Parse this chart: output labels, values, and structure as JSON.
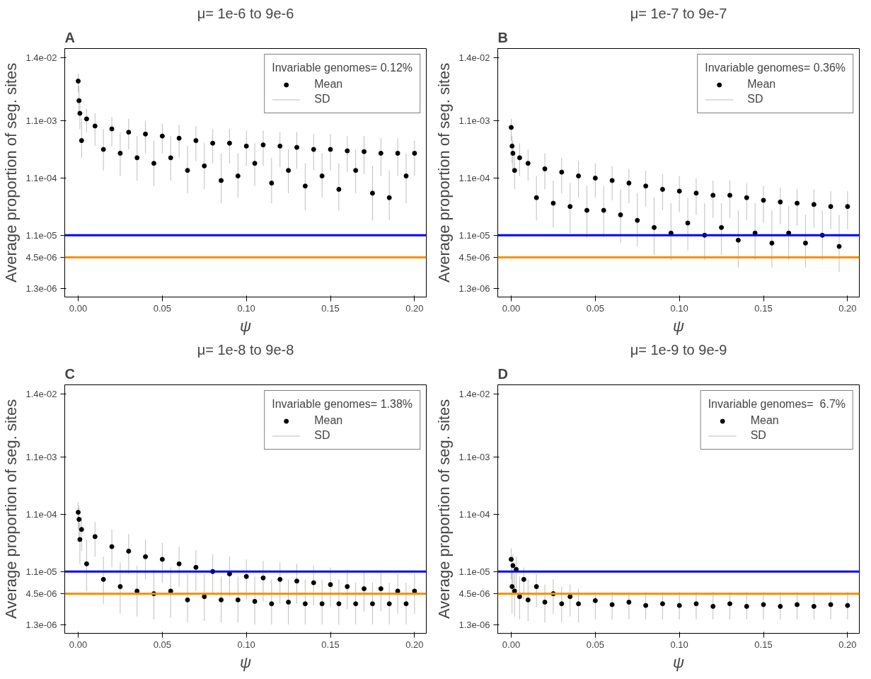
{
  "chart_data": [
    {
      "type": "scatter",
      "title": "μ= 1e-6 to 9e-6",
      "annotations": [
        "A"
      ],
      "xlabel": "ψ",
      "ylabel": "Average proportion of seg. sites",
      "legend_title": "Invariable genomes= 0.12%",
      "legend": "top right",
      "log": "y",
      "x": [
        0,
        0.0005,
        0.001,
        0.002,
        0.005,
        0.01,
        0.015,
        0.02,
        0.025,
        0.03,
        0.035,
        0.04,
        0.045,
        0.05,
        0.055,
        0.06,
        0.065,
        0.07,
        0.075,
        0.08,
        0.085,
        0.09,
        0.095,
        0.1,
        0.105,
        0.11,
        0.115,
        0.12,
        0.125,
        0.13,
        0.135,
        0.14,
        0.145,
        0.15,
        0.155,
        0.16,
        0.165,
        0.17,
        0.175,
        0.18,
        0.185,
        0.19,
        0.195,
        0.2
      ],
      "series": [
        {
          "name": "Mean",
          "marker": "circle",
          "color": "#000000",
          "values": [
            0.0055,
            0.0025,
            0.0015,
            0.0005,
            0.0012,
            0.0009,
            0.00035,
            0.0008,
            0.0003,
            0.0007,
            0.00025,
            0.00065,
            0.0002,
            0.0006,
            0.00025,
            0.00055,
            0.00015,
            0.0005,
            0.00018,
            0.00045,
            0.0001,
            0.00045,
            0.00012,
            0.0004,
            0.0002,
            0.00042,
            9e-05,
            0.0004,
            0.00015,
            0.00038,
            8e-05,
            0.00035,
            0.00012,
            0.00035,
            7e-05,
            0.00033,
            0.00015,
            0.00032,
            6e-05,
            0.0003,
            5e-05,
            0.0003,
            0.00012,
            0.0003
          ],
          "errors": [
            [
              0.0035,
              0.0075
            ],
            [
              0.0015,
              0.0045
            ],
            [
              0.0008,
              0.0022
            ],
            [
              0.00025,
              0.0012
            ],
            [
              0.0007,
              0.0018
            ],
            [
              0.0004,
              0.0015
            ],
            [
              0.00015,
              0.0008
            ],
            [
              0.0004,
              0.0013
            ],
            [
              0.00012,
              0.0007
            ],
            [
              0.00035,
              0.0012
            ],
            [
              0.0001,
              0.0006
            ],
            [
              0.0003,
              0.0011
            ],
            [
              8e-05,
              0.0005
            ],
            [
              0.0003,
              0.001
            ],
            [
              0.0001,
              0.0006
            ],
            [
              0.00025,
              0.00095
            ],
            [
              6e-05,
              0.0004
            ],
            [
              0.00022,
              0.0009
            ],
            [
              7e-05,
              0.00045
            ],
            [
              0.0002,
              0.0008
            ],
            [
              4e-05,
              0.0003
            ],
            [
              0.0002,
              0.0008
            ],
            [
              5e-05,
              0.0003
            ],
            [
              0.00018,
              0.00075
            ],
            [
              8e-05,
              0.00045
            ],
            [
              0.00018,
              0.00075
            ],
            [
              4e-05,
              0.00025
            ],
            [
              0.00017,
              0.0007
            ],
            [
              6e-05,
              0.00035
            ],
            [
              0.00016,
              0.0007
            ],
            [
              3e-05,
              0.0002
            ],
            [
              0.00015,
              0.00065
            ],
            [
              5e-05,
              0.0003
            ],
            [
              0.00015,
              0.00065
            ],
            [
              3e-05,
              0.0002
            ],
            [
              0.00014,
              0.0006
            ],
            [
              6e-05,
              0.00035
            ],
            [
              0.00013,
              0.0006
            ],
            [
              2e-05,
              0.00018
            ],
            [
              0.00012,
              0.00055
            ],
            [
              2e-05,
              0.00015
            ],
            [
              0.00012,
              0.00055
            ],
            [
              4e-05,
              0.0003
            ],
            [
              0.00012,
              0.0005
            ]
          ]
        },
        {
          "name": "SD",
          "color": "#bebebe",
          "values": [
            null,
            null,
            null,
            null,
            null,
            null,
            null,
            null,
            null,
            null,
            null,
            null,
            null,
            null,
            null,
            null,
            null,
            null,
            null,
            null,
            null,
            null,
            null,
            null,
            null,
            null,
            null,
            null,
            null,
            null,
            null,
            null,
            null,
            null,
            null,
            null,
            null,
            null,
            null,
            null,
            null,
            null,
            null,
            null
          ]
        }
      ],
      "xlim": [
        -0.008,
        0.207
      ],
      "ylim": [
        9.1e-07,
        0.0205
      ],
      "xticks": [
        {
          "value": 0,
          "label": "0.00"
        },
        {
          "value": 0.05,
          "label": "0.05"
        },
        {
          "value": 0.1,
          "label": "0.10"
        },
        {
          "value": 0.15,
          "label": "0.15"
        },
        {
          "value": 0.2,
          "label": "0.20"
        }
      ],
      "yticks": [
        {
          "value": 0.014,
          "label": "1.4e-02"
        },
        {
          "value": 0.0011,
          "label": "1.1e-03"
        },
        {
          "value": 0.00011,
          "label": "1.1e-04"
        },
        {
          "value": 1.1e-05,
          "label": "1.1e-05"
        },
        {
          "value": 4.5e-06,
          "label": "4.5e-06"
        },
        {
          "value": 1.3e-06,
          "label": "1.3e-06"
        }
      ],
      "ref_lines": [
        {
          "axis": "y",
          "value": 1.1e-05,
          "color": "#0000ff"
        },
        {
          "axis": "y",
          "value": 4.5e-06,
          "color": "#ff8c00"
        }
      ]
    },
    {
      "type": "scatter",
      "title": "μ= 1e-7 to 9e-7",
      "annotations": [
        "B"
      ],
      "xlabel": "ψ",
      "ylabel": "Average proportion of seg. sites",
      "legend_title": "Invariable genomes= 0.36%",
      "legend": "top right",
      "log": "y",
      "x": [
        0,
        0.0005,
        0.001,
        0.002,
        0.005,
        0.01,
        0.015,
        0.02,
        0.025,
        0.03,
        0.035,
        0.04,
        0.045,
        0.05,
        0.055,
        0.06,
        0.065,
        0.07,
        0.075,
        0.08,
        0.085,
        0.09,
        0.095,
        0.1,
        0.105,
        0.11,
        0.115,
        0.12,
        0.125,
        0.13,
        0.135,
        0.14,
        0.145,
        0.15,
        0.155,
        0.16,
        0.165,
        0.17,
        0.175,
        0.18,
        0.185,
        0.19,
        0.195,
        0.2
      ],
      "series": [
        {
          "name": "Mean",
          "marker": "circle",
          "color": "#000000",
          "values": [
            0.00085,
            0.0004,
            0.0003,
            0.00015,
            0.00025,
            0.0002,
            5e-05,
            0.00016,
            4e-05,
            0.00014,
            3.5e-05,
            0.00012,
            3e-05,
            0.00011,
            3e-05,
            0.0001,
            2.5e-05,
            9e-05,
            2e-05,
            8e-05,
            1.5e-05,
            7e-05,
            1.2e-05,
            6.5e-05,
            1.8e-05,
            6e-05,
            1.1e-05,
            5.5e-05,
            1.5e-05,
            5.5e-05,
            9e-06,
            5e-05,
            1.2e-05,
            4.5e-05,
            8e-06,
            4.2e-05,
            1.2e-05,
            4e-05,
            8e-06,
            3.8e-05,
            1.1e-05,
            3.5e-05,
            7e-06,
            3.5e-05
          ],
          "errors": [
            [
              0.0005,
              0.0012
            ],
            [
              0.0002,
              0.0006
            ],
            [
              0.00015,
              0.0005
            ],
            [
              7e-05,
              0.0003
            ],
            [
              0.00012,
              0.00045
            ],
            [
              0.0001,
              0.00035
            ],
            [
              2e-05,
              0.00012
            ],
            [
              7e-05,
              0.0003
            ],
            [
              1.5e-05,
              0.0001
            ],
            [
              6e-05,
              0.00025
            ],
            [
              1.2e-05,
              9e-05
            ],
            [
              5e-05,
              0.00022
            ],
            [
              1e-05,
              8e-05
            ],
            [
              5e-05,
              0.0002
            ],
            [
              1e-05,
              8e-05
            ],
            [
              4.5e-05,
              0.00018
            ],
            [
              8e-06,
              7e-05
            ],
            [
              4e-05,
              0.00016
            ],
            [
              7e-06,
              6e-05
            ],
            [
              3.5e-05,
              0.00015
            ],
            [
              5e-06,
              5e-05
            ],
            [
              3e-05,
              0.00013
            ],
            [
              4e-06,
              4e-05
            ],
            [
              2.8e-05,
              0.00012
            ],
            [
              6e-06,
              5e-05
            ],
            [
              2.5e-05,
              0.00011
            ],
            [
              4e-06,
              4e-05
            ],
            [
              2.2e-05,
              0.0001
            ],
            [
              5e-06,
              4e-05
            ],
            [
              2.2e-05,
              0.0001
            ],
            [
              3e-06,
              3e-05
            ],
            [
              2e-05,
              9e-05
            ],
            [
              4e-06,
              4e-05
            ],
            [
              1.8e-05,
              8e-05
            ],
            [
              3e-06,
              3e-05
            ],
            [
              1.7e-05,
              7.5e-05
            ],
            [
              4e-06,
              3.5e-05
            ],
            [
              1.6e-05,
              7e-05
            ],
            [
              3e-06,
              2.5e-05
            ],
            [
              1.5e-05,
              7e-05
            ],
            [
              4e-06,
              3e-05
            ],
            [
              1.4e-05,
              6.5e-05
            ],
            [
              2.5e-06,
              2.5e-05
            ],
            [
              1.4e-05,
              6.5e-05
            ]
          ]
        },
        {
          "name": "SD",
          "color": "#bebebe",
          "values": [
            null,
            null,
            null,
            null,
            null,
            null,
            null,
            null,
            null,
            null,
            null,
            null,
            null,
            null,
            null,
            null,
            null,
            null,
            null,
            null,
            null,
            null,
            null,
            null,
            null,
            null,
            null,
            null,
            null,
            null,
            null,
            null,
            null,
            null,
            null,
            null,
            null,
            null,
            null,
            null,
            null,
            null,
            null,
            null
          ]
        }
      ],
      "xlim": [
        -0.008,
        0.207
      ],
      "ylim": [
        9.1e-07,
        0.0205
      ],
      "xticks": [
        {
          "value": 0,
          "label": "0.00"
        },
        {
          "value": 0.05,
          "label": "0.05"
        },
        {
          "value": 0.1,
          "label": "0.10"
        },
        {
          "value": 0.15,
          "label": "0.15"
        },
        {
          "value": 0.2,
          "label": "0.20"
        }
      ],
      "yticks": [
        {
          "value": 0.014,
          "label": "1.4e-02"
        },
        {
          "value": 0.0011,
          "label": "1.1e-03"
        },
        {
          "value": 0.00011,
          "label": "1.1e-04"
        },
        {
          "value": 1.1e-05,
          "label": "1.1e-05"
        },
        {
          "value": 4.5e-06,
          "label": "4.5e-06"
        },
        {
          "value": 1.3e-06,
          "label": "1.3e-06"
        }
      ],
      "ref_lines": [
        {
          "axis": "y",
          "value": 1.1e-05,
          "color": "#0000ff"
        },
        {
          "axis": "y",
          "value": 4.5e-06,
          "color": "#ff8c00"
        }
      ]
    },
    {
      "type": "scatter",
      "title": "μ= 1e-8 to 9e-8",
      "annotations": [
        "C"
      ],
      "xlabel": "ψ",
      "ylabel": "Average proportion of seg. sites",
      "legend_title": "Invariable genomes= 1.38%",
      "legend": "top right",
      "log": "y",
      "x": [
        0,
        0.0005,
        0.001,
        0.002,
        0.005,
        0.01,
        0.015,
        0.02,
        0.025,
        0.03,
        0.035,
        0.04,
        0.045,
        0.05,
        0.055,
        0.06,
        0.065,
        0.07,
        0.075,
        0.08,
        0.085,
        0.09,
        0.095,
        0.1,
        0.105,
        0.11,
        0.115,
        0.12,
        0.125,
        0.13,
        0.135,
        0.14,
        0.145,
        0.15,
        0.155,
        0.16,
        0.165,
        0.17,
        0.175,
        0.18,
        0.185,
        0.19,
        0.195,
        0.2
      ],
      "series": [
        {
          "name": "Mean",
          "marker": "circle",
          "color": "#000000",
          "values": [
            0.00012,
            9e-05,
            4e-05,
            6e-05,
            1.5e-05,
            4.5e-05,
            8e-06,
            3e-05,
            6e-06,
            2.5e-05,
            5e-06,
            2e-05,
            4.5e-06,
            1.8e-05,
            5e-06,
            1.5e-05,
            3.5e-06,
            1.3e-05,
            4e-06,
            1.1e-05,
            3.5e-06,
            1e-05,
            3.5e-06,
            9e-06,
            3.3e-06,
            8.5e-06,
            3e-06,
            8e-06,
            3.2e-06,
            7.5e-06,
            3e-06,
            7e-06,
            3e-06,
            6.5e-06,
            3e-06,
            6e-06,
            3e-06,
            5.5e-06,
            3e-06,
            5.5e-06,
            3e-06,
            5e-06,
            3e-06,
            5e-06
          ],
          "errors": [
            [
              6e-05,
              0.00018
            ],
            [
              4e-05,
              0.00015
            ],
            [
              1.5e-05,
              8e-05
            ],
            [
              2.5e-05,
              0.0001
            ],
            [
              5e-06,
              4e-05
            ],
            [
              2e-05,
              8e-05
            ],
            [
              3e-06,
              2e-05
            ],
            [
              1.3e-05,
              6e-05
            ],
            [
              2e-06,
              1.6e-05
            ],
            [
              1e-05,
              5e-05
            ],
            [
              1.8e-06,
              1.4e-05
            ],
            [
              8e-06,
              4e-05
            ],
            [
              1.6e-06,
              1.2e-05
            ],
            [
              7e-06,
              3.5e-05
            ],
            [
              1.7e-06,
              1.3e-05
            ],
            [
              6e-06,
              3e-05
            ],
            [
              1.4e-06,
              1e-05
            ],
            [
              5e-06,
              2.6e-05
            ],
            [
              1.5e-06,
              1e-05
            ],
            [
              4.5e-06,
              2.2e-05
            ],
            [
              1.4e-06,
              9e-06
            ],
            [
              4e-06,
              2e-05
            ],
            [
              1.4e-06,
              9e-06
            ],
            [
              3.5e-06,
              1.8e-05
            ],
            [
              1.3e-06,
              9e-06
            ],
            [
              3.3e-06,
              1.7e-05
            ],
            [
              1.3e-06,
              8e-06
            ],
            [
              3e-06,
              1.6e-05
            ],
            [
              1.3e-06,
              8e-06
            ],
            [
              3e-06,
              1.5e-05
            ],
            [
              1.3e-06,
              8e-06
            ],
            [
              2.8e-06,
              1.4e-05
            ],
            [
              1.3e-06,
              8e-06
            ],
            [
              2.6e-06,
              1.3e-05
            ],
            [
              1.3e-06,
              8e-06
            ],
            [
              2.4e-06,
              1.2e-05
            ],
            [
              1.3e-06,
              7e-06
            ],
            [
              2.2e-06,
              1.1e-05
            ],
            [
              1.3e-06,
              7e-06
            ],
            [
              2.2e-06,
              1.1e-05
            ],
            [
              1.3e-06,
              7e-06
            ],
            [
              2e-06,
              1e-05
            ],
            [
              1.3e-06,
              7e-06
            ],
            [
              2e-06,
              1e-05
            ]
          ]
        },
        {
          "name": "SD",
          "color": "#bebebe",
          "values": [
            null,
            null,
            null,
            null,
            null,
            null,
            null,
            null,
            null,
            null,
            null,
            null,
            null,
            null,
            null,
            null,
            null,
            null,
            null,
            null,
            null,
            null,
            null,
            null,
            null,
            null,
            null,
            null,
            null,
            null,
            null,
            null,
            null,
            null,
            null,
            null,
            null,
            null,
            null,
            null,
            null,
            null,
            null,
            null
          ]
        }
      ],
      "xlim": [
        -0.008,
        0.207
      ],
      "ylim": [
        9.1e-07,
        0.0205
      ],
      "xticks": [
        {
          "value": 0,
          "label": "0.00"
        },
        {
          "value": 0.05,
          "label": "0.05"
        },
        {
          "value": 0.1,
          "label": "0.10"
        },
        {
          "value": 0.15,
          "label": "0.15"
        },
        {
          "value": 0.2,
          "label": "0.20"
        }
      ],
      "yticks": [
        {
          "value": 0.014,
          "label": "1.4e-02"
        },
        {
          "value": 0.0011,
          "label": "1.1e-03"
        },
        {
          "value": 0.00011,
          "label": "1.1e-04"
        },
        {
          "value": 1.1e-05,
          "label": "1.1e-05"
        },
        {
          "value": 4.5e-06,
          "label": "4.5e-06"
        },
        {
          "value": 1.3e-06,
          "label": "1.3e-06"
        }
      ],
      "ref_lines": [
        {
          "axis": "y",
          "value": 1.1e-05,
          "color": "#0000ff"
        },
        {
          "axis": "y",
          "value": 4.5e-06,
          "color": "#ff8c00"
        }
      ]
    },
    {
      "type": "scatter",
      "title": "μ= 1e-9 to 9e-9",
      "annotations": [
        "D"
      ],
      "xlabel": "ψ",
      "ylabel": "Average proportion of seg. sites",
      "legend_title": "Invariable genomes=  6.7%",
      "legend": "top right",
      "log": "y",
      "x": [
        0,
        0.0005,
        0.001,
        0.002,
        0.003,
        0.005,
        0.0075,
        0.01,
        0.015,
        0.02,
        0.025,
        0.03,
        0.035,
        0.04,
        0.05,
        0.06,
        0.07,
        0.08,
        0.09,
        0.1,
        0.11,
        0.12,
        0.13,
        0.14,
        0.15,
        0.16,
        0.17,
        0.18,
        0.19,
        0.2
      ],
      "series": [
        {
          "name": "Mean",
          "marker": "circle",
          "color": "#000000",
          "values": [
            1.8e-05,
            6e-06,
            1.4e-05,
            5e-06,
            1.2e-05,
            4e-06,
            8e-06,
            3.5e-06,
            6e-06,
            3.2e-06,
            4.5e-06,
            3e-06,
            4e-06,
            3e-06,
            3.4e-06,
            2.9e-06,
            3.2e-06,
            2.8e-06,
            3e-06,
            2.8e-06,
            3e-06,
            2.7e-06,
            3e-06,
            2.7e-06,
            2.9e-06,
            2.7e-06,
            2.9e-06,
            2.7e-06,
            2.9e-06,
            2.8e-06
          ],
          "errors": [
            [
              8e-06,
              2.8e-05
            ],
            [
              2e-06,
              1.2e-05
            ],
            [
              6e-06,
              2.2e-05
            ],
            [
              1.8e-06,
              1e-05
            ],
            [
              5e-06,
              2e-05
            ],
            [
              1.6e-06,
              9e-06
            ],
            [
              3.5e-06,
              1.3e-05
            ],
            [
              1.5e-06,
              8e-06
            ],
            [
              2.6e-06,
              1e-05
            ],
            [
              1.4e-06,
              6.5e-06
            ],
            [
              2e-06,
              8e-06
            ],
            [
              1.4e-06,
              6e-06
            ],
            [
              1.8e-06,
              6.5e-06
            ],
            [
              1.4e-06,
              5.5e-06
            ],
            [
              1.6e-06,
              4.8e-06
            ],
            [
              1.6e-06,
              4.8e-06
            ],
            [
              1.6e-06,
              4.8e-06
            ],
            [
              1.6e-06,
              4.8e-06
            ],
            [
              1.6e-06,
              4.8e-06
            ],
            [
              1.6e-06,
              4.8e-06
            ],
            [
              1.6e-06,
              4.8e-06
            ],
            [
              1.6e-06,
              4.8e-06
            ],
            [
              1.6e-06,
              4.8e-06
            ],
            [
              1.6e-06,
              4.8e-06
            ],
            [
              1.6e-06,
              4.8e-06
            ],
            [
              1.6e-06,
              4.8e-06
            ],
            [
              1.6e-06,
              4.8e-06
            ],
            [
              1.6e-06,
              4.8e-06
            ],
            [
              1.6e-06,
              4.8e-06
            ],
            [
              1.6e-06,
              4.8e-06
            ]
          ]
        },
        {
          "name": "SD",
          "color": "#bebebe",
          "values": [
            null,
            null,
            null,
            null,
            null,
            null,
            null,
            null,
            null,
            null,
            null,
            null,
            null,
            null,
            null,
            null,
            null,
            null,
            null,
            null,
            null,
            null,
            null,
            null,
            null,
            null,
            null,
            null,
            null,
            null
          ]
        }
      ],
      "xlim": [
        -0.008,
        0.207
      ],
      "ylim": [
        9.1e-07,
        0.0205
      ],
      "xticks": [
        {
          "value": 0,
          "label": "0.00"
        },
        {
          "value": 0.05,
          "label": "0.05"
        },
        {
          "value": 0.1,
          "label": "0.10"
        },
        {
          "value": 0.15,
          "label": "0.15"
        },
        {
          "value": 0.2,
          "label": "0.20"
        }
      ],
      "yticks": [
        {
          "value": 0.014,
          "label": "1.4e-02"
        },
        {
          "value": 0.0011,
          "label": "1.1e-03"
        },
        {
          "value": 0.00011,
          "label": "1.1e-04"
        },
        {
          "value": 1.1e-05,
          "label": "1.1e-05"
        },
        {
          "value": 4.5e-06,
          "label": "4.5e-06"
        },
        {
          "value": 1.3e-06,
          "label": "1.3e-06"
        }
      ],
      "ref_lines": [
        {
          "axis": "y",
          "value": 1.1e-05,
          "color": "#0000ff"
        },
        {
          "axis": "y",
          "value": 4.5e-06,
          "color": "#ff8c00"
        }
      ]
    }
  ]
}
